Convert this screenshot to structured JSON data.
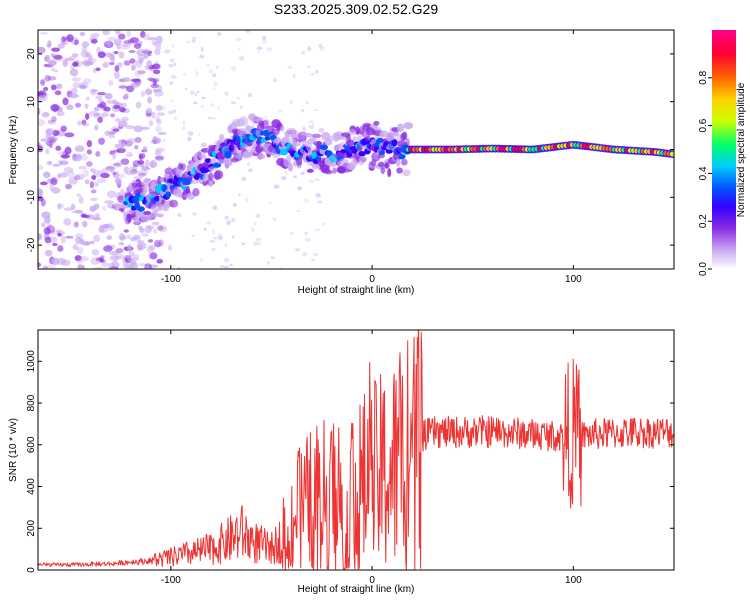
{
  "title": "S233.2025.309.02.52.G29",
  "chart_data": [
    {
      "type": "heatmap",
      "xlabel": "Height of straight line (km)",
      "ylabel": "Frequency (Hz)",
      "xlim": [
        -166,
        150
      ],
      "ylim": [
        -25,
        25
      ],
      "xticks": [
        -100,
        0,
        100
      ],
      "yticks": [
        -20,
        -10,
        0,
        10,
        20
      ],
      "colorbar": {
        "label": "Normalized spectral amplitude",
        "range": [
          0,
          1
        ],
        "ticks": [
          "0.0",
          "0.2",
          "0.4",
          "0.6",
          "0.8"
        ],
        "colors": [
          "#ffffff",
          "#c9a8f2",
          "#8a2be2",
          "#3300ff",
          "#0055ff",
          "#00ccff",
          "#00ff66",
          "#ccff00",
          "#ffd000",
          "#ff6600",
          "#ff0033",
          "#ff0088"
        ]
      },
      "ridge": {
        "x": [
          -115,
          -100,
          -90,
          -80,
          -70,
          -60,
          -50,
          -40,
          -30,
          -20,
          -10,
          0,
          10,
          20,
          40,
          60,
          80,
          100,
          120,
          140,
          150
        ],
        "y": [
          -11,
          -8,
          -6,
          -3,
          1,
          3,
          2,
          0,
          -1,
          -1,
          0,
          1,
          0,
          0,
          0,
          0.2,
          0,
          1,
          0,
          -0.5,
          -1
        ]
      }
    },
    {
      "type": "line",
      "xlabel": "Height of straight line (km)",
      "ylabel": "SNR (10 * v/v)",
      "xlim": [
        -166,
        150
      ],
      "ylim": [
        0,
        1150
      ],
      "xticks": [
        -100,
        0,
        100
      ],
      "yticks": [
        0,
        200,
        400,
        600,
        800,
        1000
      ],
      "series": [
        {
          "name": "SNR",
          "color": "#ee3333",
          "x": [
            -166,
            -150,
            -130,
            -110,
            -100,
            -90,
            -80,
            -70,
            -65,
            -60,
            -50,
            -45,
            -40,
            -30,
            -20,
            -10,
            0,
            10,
            15,
            20,
            25,
            30,
            40,
            60,
            80,
            95,
            100,
            103,
            110,
            130,
            150
          ],
          "values": [
            25,
            25,
            30,
            45,
            60,
            80,
            100,
            150,
            180,
            140,
            100,
            150,
            250,
            330,
            360,
            380,
            430,
            480,
            520,
            560,
            640,
            660,
            660,
            665,
            650,
            640,
            660,
            640,
            650,
            660,
            660
          ]
        }
      ]
    }
  ]
}
